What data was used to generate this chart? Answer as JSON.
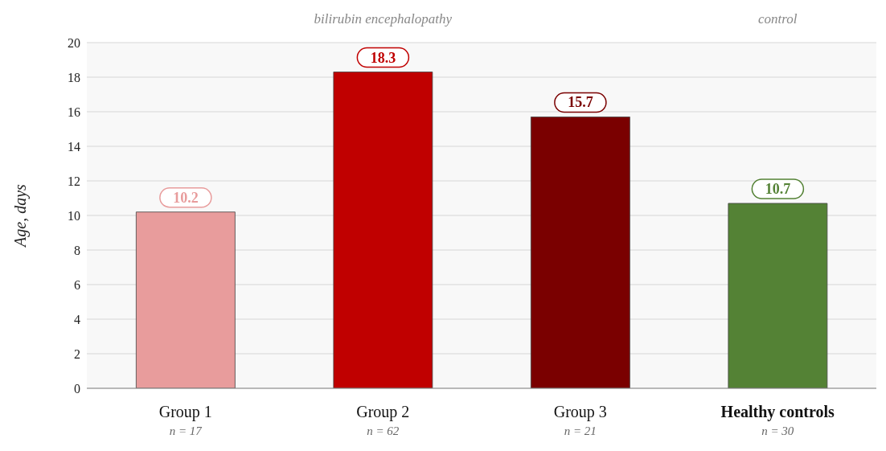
{
  "chart_data": {
    "type": "bar",
    "categories": [
      "Group 1",
      "Group 2",
      "Group 3",
      "Healthy controls"
    ],
    "values": [
      10.2,
      18.3,
      15.7,
      10.7
    ],
    "colors": [
      "#e89c9c",
      "#c00000",
      "#7a0000",
      "#548235"
    ],
    "ylabel": "Age, days",
    "ylim": [
      0,
      20
    ],
    "yticks": [
      0,
      2,
      4,
      6,
      8,
      10,
      12,
      14,
      16,
      18,
      20
    ],
    "grid": "y",
    "data_labels": true,
    "annotations": [
      "bilirubin encephalopathy",
      "control",
      "n = 17",
      "n = 62",
      "n = 21",
      "n = 30"
    ]
  }
}
